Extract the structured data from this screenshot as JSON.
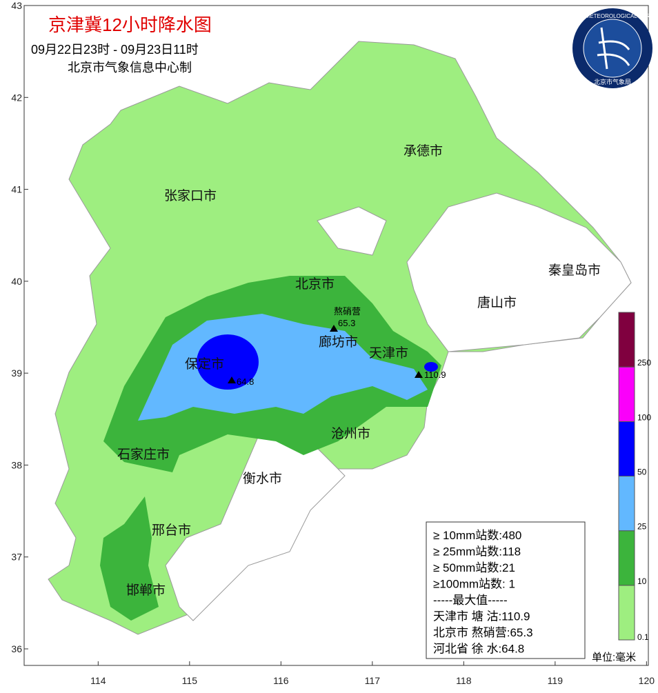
{
  "header": {
    "title": "京津冀12小时降水图",
    "time": "09月22日23时 - 09月23日11时",
    "producer": "北京市气象信息中心制"
  },
  "logo": {
    "ring": "BEIJING METEOROLOGICAL SERVICE",
    "name": "北京市气象局"
  },
  "axes": {
    "xlim": [
      113.19,
      120.02
    ],
    "ylim": [
      35.82,
      43
    ],
    "xticks": [
      114,
      115,
      116,
      117,
      118,
      119,
      120
    ],
    "yticks": [
      36,
      37,
      38,
      39,
      40,
      41,
      42,
      43
    ]
  },
  "cities": [
    "承德市",
    "张家口市",
    "北京市",
    "秦皇岛市",
    "唐山市",
    "廊坊市",
    "天津市",
    "保定市",
    "沧州市",
    "石家庄市",
    "衡水市",
    "邢台市",
    "邯郸市"
  ],
  "stations": {
    "names": [
      "熬硝营"
    ],
    "values": [
      65.3,
      110.9,
      64.8
    ]
  },
  "legend": {
    "lines": [
      "≥ 10mm站数:480",
      "≥ 25mm站数:118",
      "≥ 50mm站数:21",
      "≥100mm站数: 1",
      "-----最大值-----",
      "天津市 塘 沽:110.9",
      "北京市 熬硝营:65.3",
      "河北省 徐 水:64.8"
    ],
    "unit": "单位:毫米"
  },
  "colorbar": {
    "levels": [
      0.1,
      10,
      25,
      50,
      100,
      250
    ],
    "colors": [
      "#9eee80",
      "#3cb43c",
      "#62b8ff",
      "#0000fe",
      "#fa00fa",
      "#80003f"
    ]
  }
}
